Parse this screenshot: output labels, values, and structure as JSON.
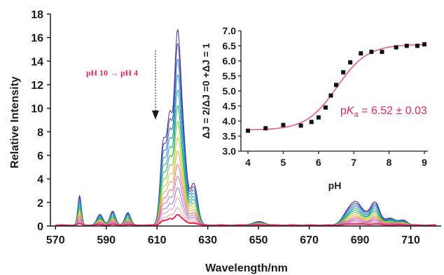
{
  "chart_data": [
    {
      "type": "line",
      "xlabel": "Wavelength/nm",
      "ylabel": "Relative Intensity",
      "xlim": [
        568,
        722
      ],
      "ylim": [
        0,
        18
      ],
      "x_ticks": [
        570,
        590,
        610,
        630,
        650,
        670,
        690,
        710
      ],
      "y_ticks": [
        0,
        2,
        4,
        6,
        8,
        10,
        12,
        14,
        16,
        18
      ],
      "grid": false,
      "annotation": "pH 10 → pH 4",
      "arrow_direction": "down",
      "peaks": [
        {
          "wavelength": 579.5,
          "max": 2.5,
          "width": 0.7
        },
        {
          "wavelength": 587.5,
          "max": 0.9,
          "width": 1.2
        },
        {
          "wavelength": 592.5,
          "max": 1.2,
          "width": 1.1
        },
        {
          "wavelength": 598.5,
          "max": 1.1,
          "width": 1.1
        },
        {
          "wavelength": 612.5,
          "max": 7.0,
          "width": 1.2
        },
        {
          "wavelength": 615.0,
          "max": 7.8,
          "width": 1.0
        },
        {
          "wavelength": 618.0,
          "max": 15.5,
          "width": 1.3
        },
        {
          "wavelength": 620.5,
          "max": 6.0,
          "width": 1.3
        },
        {
          "wavelength": 624.5,
          "max": 3.5,
          "width": 1.5
        },
        {
          "wavelength": 650.0,
          "max": 0.3,
          "width": 2.5
        },
        {
          "wavelength": 685.0,
          "max": 1.0,
          "width": 2.2
        },
        {
          "wavelength": 688.5,
          "max": 1.6,
          "width": 2.0
        },
        {
          "wavelength": 692.0,
          "max": 0.7,
          "width": 2.0
        },
        {
          "wavelength": 696.0,
          "max": 1.9,
          "width": 1.8
        },
        {
          "wavelength": 702.0,
          "max": 0.6,
          "width": 2.0
        },
        {
          "wavelength": 707.0,
          "max": 0.4,
          "width": 1.8
        }
      ],
      "series_scales": [
        1.0,
        0.93,
        0.85,
        0.77,
        0.69,
        0.61,
        0.53,
        0.45,
        0.38,
        0.31,
        0.25,
        0.19,
        0.14,
        0.09,
        0.055
      ],
      "colors": [
        "#4b2c8f",
        "#3f47a6",
        "#2f6fd0",
        "#2f94c8",
        "#1fa8a0",
        "#21a65a",
        "#6cc43f",
        "#c8c93a",
        "#f0a43a",
        "#e4746e",
        "#d16fb0",
        "#9b6fd1",
        "#e88fb8",
        "#f29c9c",
        "#e8255c"
      ]
    },
    {
      "type": "scatter",
      "xlabel": "pH",
      "ylabel": "ΔJ = 2/ΔJ =0 +ΔJ = 1",
      "xlim": [
        3.8,
        9.1
      ],
      "ylim": [
        3.0,
        7.0
      ],
      "x_ticks": [
        4,
        5,
        6,
        7,
        8,
        9
      ],
      "y_ticks": [
        3.0,
        3.5,
        4.0,
        4.5,
        5.0,
        5.5,
        6.0,
        6.5,
        7.0
      ],
      "points": [
        {
          "x": 4.0,
          "y": 3.68
        },
        {
          "x": 4.5,
          "y": 3.76
        },
        {
          "x": 5.0,
          "y": 3.87
        },
        {
          "x": 5.5,
          "y": 3.85
        },
        {
          "x": 5.8,
          "y": 3.97
        },
        {
          "x": 6.0,
          "y": 4.12
        },
        {
          "x": 6.2,
          "y": 4.45
        },
        {
          "x": 6.35,
          "y": 4.85
        },
        {
          "x": 6.5,
          "y": 5.2
        },
        {
          "x": 6.7,
          "y": 5.62
        },
        {
          "x": 6.9,
          "y": 5.95
        },
        {
          "x": 7.2,
          "y": 6.25
        },
        {
          "x": 7.5,
          "y": 6.3
        },
        {
          "x": 7.8,
          "y": 6.3
        },
        {
          "x": 8.2,
          "y": 6.45
        },
        {
          "x": 8.5,
          "y": 6.5
        },
        {
          "x": 8.8,
          "y": 6.5
        },
        {
          "x": 9.0,
          "y": 6.55
        }
      ],
      "fit": {
        "pKa": 6.52,
        "low": 3.7,
        "high": 6.55,
        "color": "#e8508a"
      },
      "pka_label": {
        "prefix": "p",
        "italic": "K",
        "sub": "a",
        "suffix": " = 6.52 ± 0.03"
      }
    }
  ]
}
